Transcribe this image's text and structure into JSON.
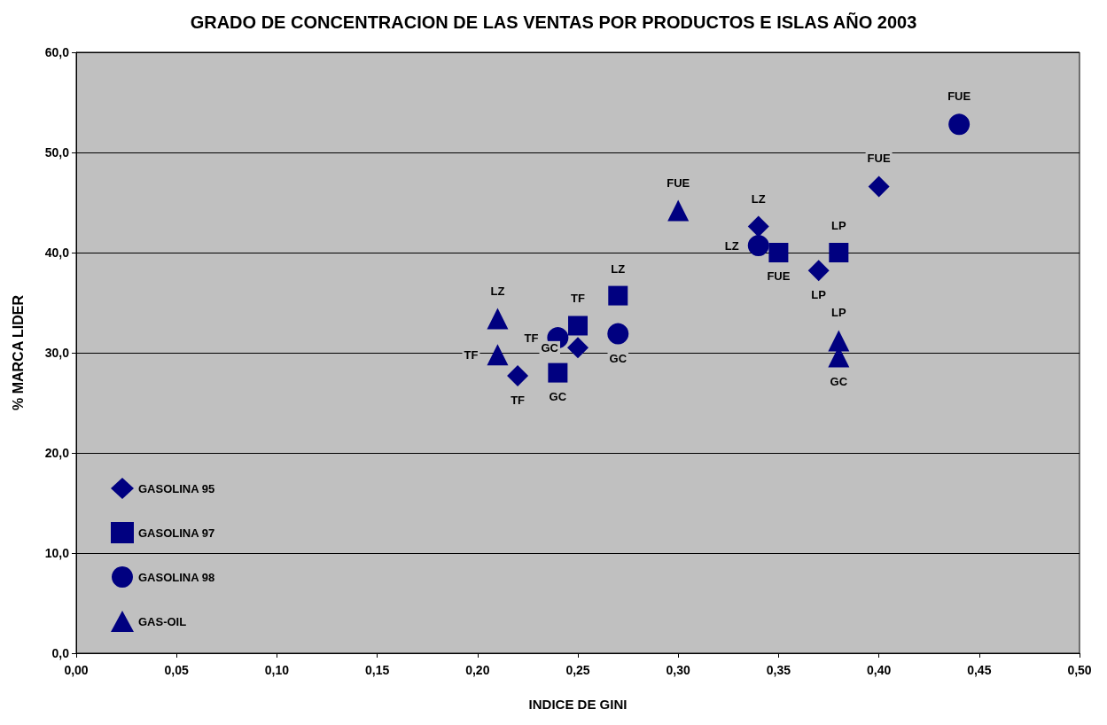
{
  "chart_data": {
    "type": "scatter",
    "title": "GRADO DE CONCENTRACION DE LAS VENTAS POR PRODUCTOS E ISLAS AÑO 2003",
    "xlabel": "INDICE DE GINI",
    "ylabel": "% MARCA LIDER",
    "xlim": [
      0,
      0.5
    ],
    "xticks": [
      {
        "value": 0,
        "label": "0,00"
      },
      {
        "value": 0.05,
        "label": "0,05"
      },
      {
        "value": 0.1,
        "label": "0,10"
      },
      {
        "value": 0.15,
        "label": "0,15"
      },
      {
        "value": 0.2,
        "label": "0,20"
      },
      {
        "value": 0.25,
        "label": "0,25"
      },
      {
        "value": 0.3,
        "label": "0,30"
      },
      {
        "value": 0.35,
        "label": "0,35"
      },
      {
        "value": 0.4,
        "label": "0,40"
      },
      {
        "value": 0.45,
        "label": "0,45"
      },
      {
        "value": 0.5,
        "label": "0,50"
      }
    ],
    "ylim": [
      0,
      60
    ],
    "yticks": [
      {
        "value": 0,
        "label": "0,0"
      },
      {
        "value": 10,
        "label": "10,0"
      },
      {
        "value": 20,
        "label": "20,0"
      },
      {
        "value": 30,
        "label": "30,0"
      },
      {
        "value": 40,
        "label": "40,0"
      },
      {
        "value": 50,
        "label": "50,0"
      },
      {
        "value": 60,
        "label": "60,0"
      }
    ],
    "grid": "y",
    "legend": "bottom left",
    "series": [
      {
        "name": "GASOLINA 95",
        "color": "#000080",
        "marker": "diamond",
        "x": [
          0.22,
          0.25,
          0.34,
          0.37,
          0.4
        ],
        "values": [
          27.7,
          30.5,
          42.6,
          38.2,
          46.6
        ],
        "value_labels": [
          "TF",
          "GC",
          "LZ",
          "LP",
          "FUE"
        ]
      },
      {
        "name": "GASOLINA 97",
        "color": "#000080",
        "marker": "square",
        "x": [
          0.24,
          0.25,
          0.27,
          0.35,
          0.38
        ],
        "values": [
          28.0,
          32.7,
          35.7,
          40.0,
          40.0
        ],
        "value_labels": [
          "GC",
          "TF",
          "LZ",
          "FUE",
          "LP"
        ]
      },
      {
        "name": "GASOLINA 98",
        "color": "#000080",
        "marker": "circle",
        "x": [
          0.24,
          0.27,
          0.34,
          0.44
        ],
        "values": [
          31.5,
          31.9,
          40.7,
          52.8
        ],
        "value_labels": [
          "TF",
          "GC",
          "LZ",
          "FUE"
        ]
      },
      {
        "name": "GAS-OIL",
        "color": "#000080",
        "marker": "triangle",
        "x": [
          0.21,
          0.21,
          0.3,
          0.38,
          0.38
        ],
        "values": [
          33.4,
          29.8,
          44.2,
          31.2,
          29.6
        ],
        "value_labels": [
          "LZ",
          "TF",
          "FUE",
          "LP",
          "GC"
        ]
      }
    ]
  }
}
